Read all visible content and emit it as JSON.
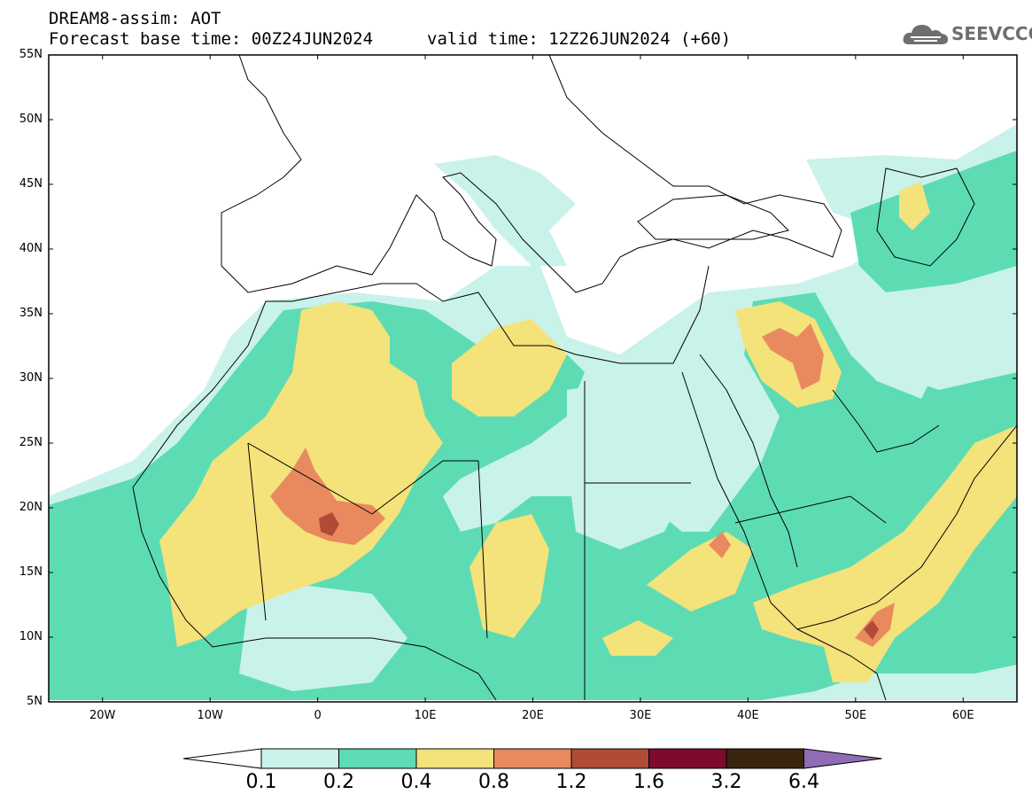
{
  "header": {
    "line1": "DREAM8-assim: AOT",
    "base_time": "Forecast base time: 00Z24JUN2024",
    "valid_time": "valid time: 12Z26JUN2024 (+60)"
  },
  "logo": {
    "text": "SEEVCCC",
    "icon": "cloud-icon"
  },
  "map": {
    "lat_labels": [
      "55N",
      "50N",
      "45N",
      "40N",
      "35N",
      "30N",
      "25N",
      "20N",
      "15N",
      "10N",
      "5N"
    ],
    "lon_labels": [
      "20W",
      "10W",
      "0",
      "10E",
      "20E",
      "30E",
      "40E",
      "50E",
      "60E"
    ],
    "extent": {
      "lon": [
        -25,
        65
      ],
      "lat": [
        5,
        55
      ]
    }
  },
  "colorbar": {
    "labels": [
      "0.1",
      "0.2",
      "0.4",
      "0.8",
      "1.2",
      "1.6",
      "3.2",
      "6.4"
    ],
    "colors": [
      "#ffffff",
      "#c9f2ea",
      "#5ddcb4",
      "#f4e27a",
      "#e98a5e",
      "#b24a38",
      "#7c0b2e",
      "#3a2410",
      "#8f6cb4"
    ]
  },
  "field_colors": {
    "c01": "#c9f2ea",
    "c02": "#5ddcb4",
    "c04": "#f4e27a",
    "c08": "#e98a5e",
    "c12": "#b24a38"
  }
}
